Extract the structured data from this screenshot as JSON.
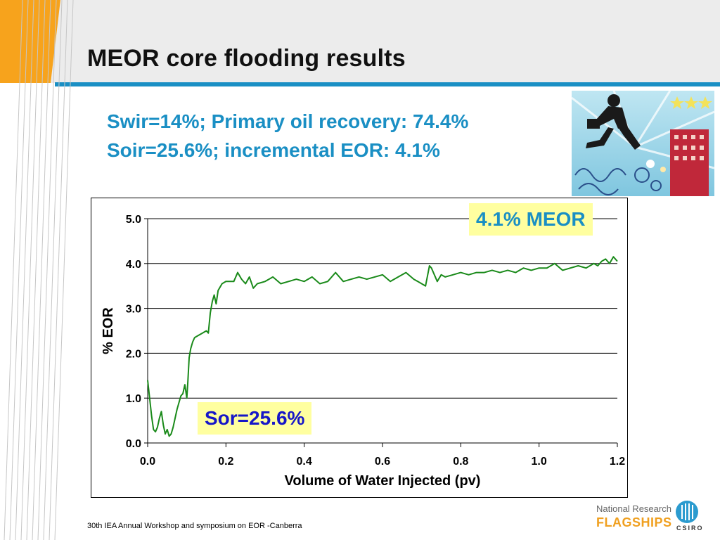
{
  "slide": {
    "title": "MEOR core flooding results",
    "subtitle_line1": "Swir=14%; Primary oil recovery: 74.4%",
    "subtitle_line2": "Soir=25.6%; incremental EOR: 4.1%",
    "footer": "30th IEA Annual Workshop and symposium on EOR -Canberra",
    "logo_line1": "National Research",
    "logo_line2": "FLAGSHIPS",
    "logo_line3": "CSIRO",
    "accent_color": "#1a8fc4",
    "orange_color": "#f7a31c"
  },
  "chart_data": {
    "type": "line",
    "title": "",
    "xlabel": "Volume of Water Injected (pv)",
    "ylabel": "% EOR",
    "xlim": [
      0,
      1.2
    ],
    "ylim": [
      0,
      5
    ],
    "x_ticks": [
      "0.0",
      "0.2",
      "0.4",
      "0.6",
      "0.8",
      "1.0",
      "1.2"
    ],
    "y_ticks": [
      "0.0",
      "1.0",
      "2.0",
      "3.0",
      "4.0",
      "5.0"
    ],
    "grid": "horizontal",
    "series_color": "#1a8a1a",
    "annotations": [
      "4.1% MEOR",
      "Sor=25.6%"
    ],
    "series": [
      {
        "x": [
          0.0,
          0.005,
          0.01,
          0.015,
          0.02,
          0.025,
          0.03,
          0.035,
          0.04,
          0.045,
          0.05,
          0.055,
          0.06,
          0.065,
          0.07,
          0.075,
          0.08,
          0.085,
          0.09,
          0.095,
          0.1,
          0.103,
          0.106,
          0.11,
          0.115,
          0.12,
          0.13,
          0.14,
          0.15,
          0.155,
          0.16,
          0.165,
          0.17,
          0.175,
          0.18,
          0.19,
          0.2,
          0.21,
          0.22,
          0.23,
          0.24,
          0.25,
          0.26,
          0.27,
          0.28,
          0.3,
          0.32,
          0.34,
          0.36,
          0.38,
          0.4,
          0.42,
          0.44,
          0.46,
          0.48,
          0.5,
          0.52,
          0.54,
          0.56,
          0.58,
          0.6,
          0.62,
          0.64,
          0.66,
          0.68,
          0.69,
          0.7,
          0.71,
          0.72,
          0.725,
          0.73,
          0.74,
          0.75,
          0.76,
          0.78,
          0.8,
          0.82,
          0.84,
          0.86,
          0.88,
          0.9,
          0.92,
          0.94,
          0.96,
          0.98,
          1.0,
          1.02,
          1.04,
          1.06,
          1.08,
          1.1,
          1.12,
          1.14,
          1.15,
          1.16,
          1.17,
          1.18,
          1.19,
          1.2
        ],
        "y": [
          1.4,
          1.0,
          0.6,
          0.3,
          0.25,
          0.35,
          0.55,
          0.7,
          0.4,
          0.2,
          0.3,
          0.15,
          0.2,
          0.35,
          0.55,
          0.75,
          0.9,
          1.05,
          1.1,
          1.3,
          1.0,
          1.4,
          1.9,
          2.1,
          2.25,
          2.35,
          2.4,
          2.45,
          2.5,
          2.45,
          2.9,
          3.15,
          3.3,
          3.1,
          3.4,
          3.55,
          3.6,
          3.6,
          3.6,
          3.8,
          3.65,
          3.55,
          3.7,
          3.45,
          3.55,
          3.6,
          3.7,
          3.55,
          3.6,
          3.65,
          3.6,
          3.7,
          3.55,
          3.6,
          3.8,
          3.6,
          3.65,
          3.7,
          3.65,
          3.7,
          3.75,
          3.6,
          3.7,
          3.8,
          3.65,
          3.6,
          3.55,
          3.5,
          3.95,
          3.9,
          3.8,
          3.6,
          3.75,
          3.7,
          3.75,
          3.8,
          3.75,
          3.8,
          3.8,
          3.85,
          3.8,
          3.85,
          3.8,
          3.9,
          3.85,
          3.9,
          3.9,
          4.0,
          3.85,
          3.9,
          3.95,
          3.9,
          4.0,
          3.95,
          4.05,
          4.1,
          4.0,
          4.15,
          4.05
        ]
      }
    ]
  }
}
